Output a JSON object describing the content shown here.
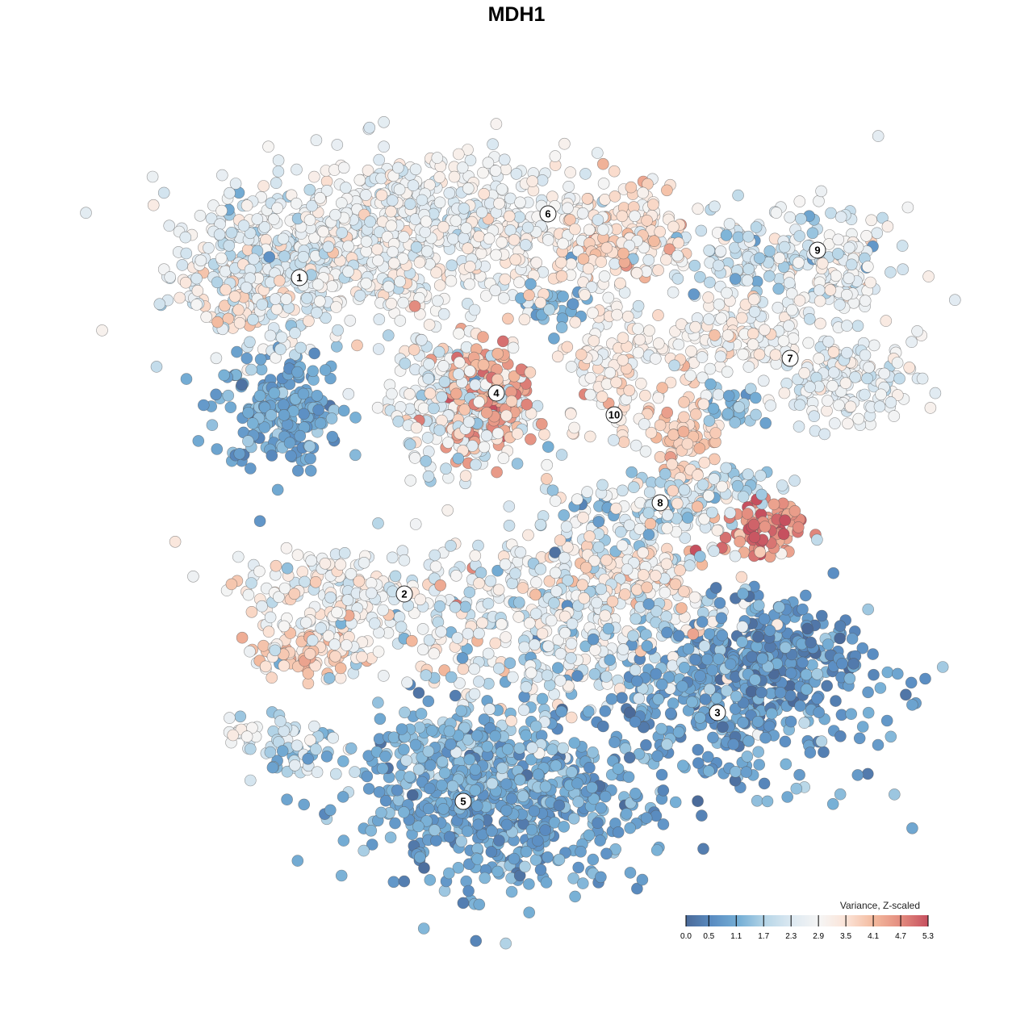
{
  "chart_data": {
    "type": "scatter",
    "title": "MDH1",
    "xlabel": "",
    "ylabel": "",
    "xlim": [
      -64,
      64
    ],
    "ylim": [
      -64,
      64
    ],
    "grid": false,
    "point_generation": "seeded gaussian blobs (tSNE-like embedding, arbitrary units); value = Variance, Z-scaled",
    "blobs": [
      {
        "cluster": "1",
        "cx": -31,
        "cy": 30,
        "sx": 6,
        "sy": 4.5,
        "n": 300,
        "mean": 2.3,
        "sd": 0.5
      },
      {
        "cluster": "1",
        "cx": -29.5,
        "cy": 13.5,
        "sx": 4,
        "sy": 3.5,
        "n": 200,
        "mean": 0.9,
        "sd": 0.3
      },
      {
        "cluster": "1",
        "cx": -34,
        "cy": 27,
        "sx": 2.5,
        "sy": 2,
        "n": 40,
        "mean": 3.4,
        "sd": 0.3
      },
      {
        "cluster": "6",
        "cx": -12,
        "cy": 37,
        "sx": 11,
        "sy": 4,
        "n": 500,
        "mean": 2.6,
        "sd": 0.4
      },
      {
        "cluster": "6",
        "cx": -19,
        "cy": 31,
        "sx": 6,
        "sy": 4,
        "n": 150,
        "mean": 2.9,
        "sd": 0.5
      },
      {
        "cluster": "6",
        "cx": 13,
        "cy": 35,
        "sx": 4.5,
        "sy": 3.5,
        "n": 150,
        "mean": 3.5,
        "sd": 0.4
      },
      {
        "cluster": "6",
        "cx": 0,
        "cy": 32,
        "sx": 6,
        "sy": 3,
        "n": 100,
        "mean": 2.9,
        "sd": 0.5
      },
      {
        "cluster": "6",
        "cx": 5,
        "cy": 25.5,
        "sx": 1.5,
        "sy": 2,
        "n": 30,
        "mean": 1.0,
        "sd": 0.3
      },
      {
        "cluster": "4",
        "cx": -7,
        "cy": 14,
        "sx": 4.5,
        "sy": 4.5,
        "n": 250,
        "mean": 2.5,
        "sd": 0.6
      },
      {
        "cluster": "4",
        "cx": -3.5,
        "cy": 15,
        "sx": 3,
        "sy": 3.5,
        "n": 150,
        "mean": 4.3,
        "sd": 0.4
      },
      {
        "cluster": "10",
        "cx": 12,
        "cy": 17,
        "sx": 3.5,
        "sy": 4.5,
        "n": 100,
        "mean": 3.1,
        "sd": 0.5
      },
      {
        "cluster": "9",
        "cx": 32,
        "cy": 32,
        "sx": 7,
        "sy": 3,
        "n": 180,
        "mean": 2.1,
        "sd": 0.6
      },
      {
        "cluster": "9",
        "cx": 41,
        "cy": 30,
        "sx": 2,
        "sy": 4,
        "n": 60,
        "mean": 2.8,
        "sd": 0.4
      },
      {
        "cluster": "7",
        "cx": 26,
        "cy": 22,
        "sx": 6,
        "sy": 2.5,
        "n": 150,
        "mean": 2.9,
        "sd": 0.4
      },
      {
        "cluster": "7",
        "cx": 41,
        "cy": 17,
        "sx": 4.5,
        "sy": 2.5,
        "n": 150,
        "mean": 2.5,
        "sd": 0.4
      },
      {
        "cluster": "7",
        "cx": 21,
        "cy": 10,
        "sx": 2,
        "sy": 3.5,
        "n": 80,
        "mean": 3.8,
        "sd": 0.3
      },
      {
        "cluster": "7",
        "cx": 27,
        "cy": 13.5,
        "sx": 2,
        "sy": 1.5,
        "n": 30,
        "mean": 1.2,
        "sd": 0.3
      },
      {
        "cluster": "8",
        "cx": 16,
        "cy": 0.5,
        "sx": 7,
        "sy": 2.5,
        "n": 150,
        "mean": 2.0,
        "sd": 0.7
      },
      {
        "cluster": "8",
        "cx": 30.5,
        "cy": -1.5,
        "sx": 2.5,
        "sy": 1.8,
        "n": 90,
        "mean": 4.8,
        "sd": 0.4
      },
      {
        "cluster": "8",
        "cx": 26,
        "cy": 4,
        "sx": 4,
        "sy": 1.5,
        "n": 40,
        "mean": 1.8,
        "sd": 0.5
      },
      {
        "cluster": "2",
        "cx": -22,
        "cy": -10.5,
        "sx": 6,
        "sy": 3.5,
        "n": 200,
        "mean": 2.8,
        "sd": 0.6
      },
      {
        "cluster": "2",
        "cx": -26,
        "cy": -17,
        "sx": 4.5,
        "sy": 1.5,
        "n": 70,
        "mean": 3.7,
        "sd": 0.3
      },
      {
        "cluster": "central",
        "cx": 5,
        "cy": -13,
        "sx": 11,
        "sy": 5.5,
        "n": 450,
        "mean": 2.4,
        "sd": 0.7
      },
      {
        "cluster": "central",
        "cx": 13,
        "cy": -7,
        "sx": 6,
        "sy": 2,
        "n": 100,
        "mean": 3.4,
        "sd": 0.4
      },
      {
        "cluster": "3",
        "cx": 26,
        "cy": -22,
        "sx": 9,
        "sy": 5.5,
        "n": 450,
        "mean": 0.8,
        "sd": 0.4
      },
      {
        "cluster": "3",
        "cx": 33,
        "cy": -17,
        "sx": 5,
        "sy": 3,
        "n": 150,
        "mean": 0.6,
        "sd": 0.3
      },
      {
        "cluster": "5",
        "cx": -2,
        "cy": -36,
        "sx": 9,
        "sy": 5,
        "n": 550,
        "mean": 0.9,
        "sd": 0.35
      },
      {
        "cluster": "5",
        "cx": -8,
        "cy": -29,
        "sx": 6,
        "sy": 3,
        "n": 150,
        "mean": 1.3,
        "sd": 0.4
      },
      {
        "cluster": "small",
        "cx": -28,
        "cy": -29,
        "sx": 3,
        "sy": 2,
        "n": 50,
        "mean": 1.8,
        "sd": 0.5
      },
      {
        "cluster": "small",
        "cx": -34,
        "cy": -26.5,
        "sx": 1.2,
        "sy": 1,
        "n": 15,
        "mean": 2.8,
        "sd": 0.3
      }
    ],
    "cluster_labels": [
      {
        "label": "1",
        "x": -26.9,
        "y": 29.6
      },
      {
        "label": "6",
        "x": 3.9,
        "y": 37.5
      },
      {
        "label": "9",
        "x": 37.3,
        "y": 33
      },
      {
        "label": "7",
        "x": 33.9,
        "y": 19.6
      },
      {
        "label": "4",
        "x": -2.5,
        "y": 15.3
      },
      {
        "label": "10",
        "x": 12.1,
        "y": 12.6
      },
      {
        "label": "8",
        "x": 17.8,
        "y": 1.7
      },
      {
        "label": "2",
        "x": -13.9,
        "y": -9.6
      },
      {
        "label": "3",
        "x": 24.9,
        "y": -24.3
      },
      {
        "label": "5",
        "x": -6.6,
        "y": -35.3
      }
    ],
    "legend": {
      "title": "Variance, Z-scaled",
      "placement": "bottom-right",
      "range": [
        0.0,
        5.3
      ],
      "ticks": [
        "0.0",
        "0.5",
        "1.1",
        "1.7",
        "2.3",
        "2.9",
        "3.5",
        "4.1",
        "4.7",
        "5.3"
      ],
      "colors": [
        "#4b6a99",
        "#5b8ec3",
        "#77b0d6",
        "#b9d7e8",
        "#dfeaf2",
        "#f6f5f4",
        "#fbe2d5",
        "#f3b99d",
        "#e38b7e",
        "#c6505f"
      ]
    }
  }
}
